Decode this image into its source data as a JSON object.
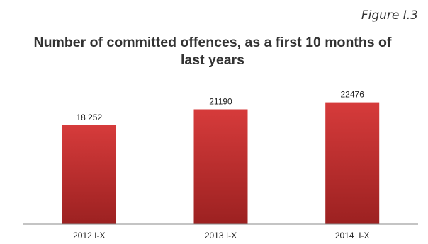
{
  "figure_label": "Figure I.3",
  "chart_data": {
    "type": "bar",
    "title": "Number of committed offences, as a first 10 months of last years",
    "categories": [
      "2012 I-X",
      "2013 I-X",
      "2014  I-X"
    ],
    "values": [
      18252,
      21190,
      22476
    ],
    "value_labels": [
      "18 252",
      "21190",
      "22476"
    ],
    "xlabel": "",
    "ylabel": "",
    "ylim": [
      0,
      25000
    ],
    "grid": false,
    "legend": "none",
    "bar_color_top": "#d63b3b",
    "bar_color_bottom": "#9c2121"
  }
}
